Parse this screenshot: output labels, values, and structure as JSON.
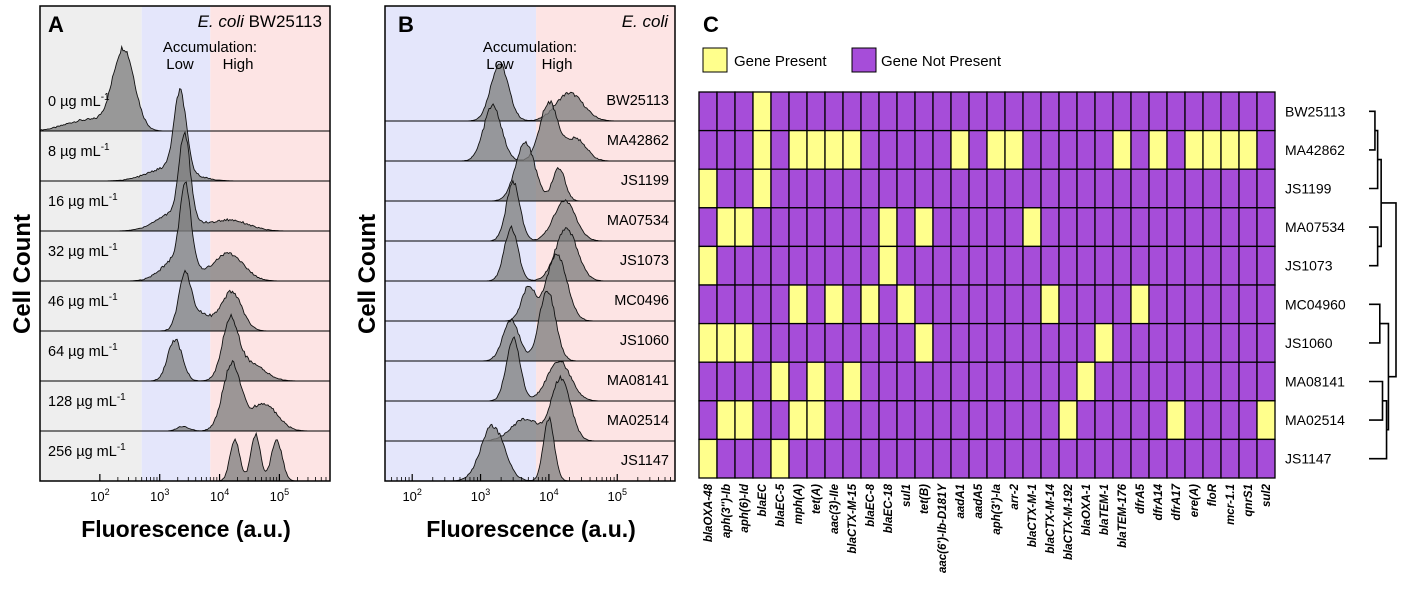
{
  "colors": {
    "low_band": "#e4e6fb",
    "high_band": "#fde4e4",
    "untreated_band": "#eeeeee",
    "peak_fill": "#808080",
    "gene_present": "#ffff8c",
    "gene_absent": "#a64dd9"
  },
  "chart_data": [
    {
      "panel": "A",
      "type": "area",
      "title_italic": "E. coli",
      "title_plain": " BW25113",
      "band_label_top": "Accumulation:",
      "band_labels": [
        "Low",
        "High"
      ],
      "xlabel": "Fluorescence (a.u.)",
      "ylabel": "Cell Count",
      "xscale": "log",
      "xlim": [
        10,
        700000
      ],
      "band_edges": [
        500,
        7000
      ],
      "xticks": [
        100,
        1000,
        10000,
        100000
      ],
      "xtick_labels": [
        {
          "base": "10",
          "exp": "2"
        },
        {
          "base": "10",
          "exp": "3"
        },
        {
          "base": "10",
          "exp": "4"
        },
        {
          "base": "10",
          "exp": "5"
        }
      ],
      "rows": [
        {
          "label": "0 µg mL",
          "sup": "-1",
          "peaks": [
            {
              "c": 250,
              "h": 0.88,
              "w": 0.18
            },
            {
              "c": 60,
              "h": 0.12,
              "w": 0.35
            }
          ]
        },
        {
          "label": "8 µg mL",
          "sup": "-1",
          "peaks": [
            {
              "c": 2200,
              "h": 0.85,
              "w": 0.1
            },
            {
              "c": 1500,
              "h": 0.15,
              "w": 0.35
            }
          ]
        },
        {
          "label": "16 µg mL",
          "sup": "-1",
          "peaks": [
            {
              "c": 2600,
              "h": 0.9,
              "w": 0.09
            },
            {
              "c": 1800,
              "h": 0.2,
              "w": 0.3
            },
            {
              "c": 15000,
              "h": 0.12,
              "w": 0.3
            }
          ]
        },
        {
          "label": "32 µg mL",
          "sup": "-1",
          "peaks": [
            {
              "c": 2700,
              "h": 0.85,
              "w": 0.09
            },
            {
              "c": 2000,
              "h": 0.25,
              "w": 0.25
            },
            {
              "c": 14000,
              "h": 0.3,
              "w": 0.25
            }
          ]
        },
        {
          "label": "46 µg mL",
          "sup": "-1",
          "peaks": [
            {
              "c": 2600,
              "h": 0.55,
              "w": 0.1
            },
            {
              "c": 16000,
              "h": 0.42,
              "w": 0.17
            },
            {
              "c": 4500,
              "h": 0.2,
              "w": 0.2
            }
          ]
        },
        {
          "label": "64 µg mL",
          "sup": "-1",
          "peaks": [
            {
              "c": 1800,
              "h": 0.45,
              "w": 0.12
            },
            {
              "c": 15000,
              "h": 0.6,
              "w": 0.13
            },
            {
              "c": 30000,
              "h": 0.2,
              "w": 0.25
            }
          ]
        },
        {
          "label": "128 µg mL",
          "sup": "-1",
          "peaks": [
            {
              "c": 16000,
              "h": 0.72,
              "w": 0.15
            },
            {
              "c": 55000,
              "h": 0.3,
              "w": 0.22
            },
            {
              "c": 2500,
              "h": 0.05,
              "w": 0.1
            }
          ]
        },
        {
          "label": "256 µg mL",
          "sup": "-1",
          "peaks": [
            {
              "c": 18000,
              "h": 0.45,
              "w": 0.08
            },
            {
              "c": 40000,
              "h": 0.5,
              "w": 0.08
            },
            {
              "c": 90000,
              "h": 0.45,
              "w": 0.09
            }
          ]
        }
      ]
    },
    {
      "panel": "B",
      "type": "area",
      "title_italic": "E. coli",
      "title_plain": "",
      "band_label_top": "Accumulation:",
      "band_labels": [
        "Low",
        "High"
      ],
      "xlabel": "Fluorescence (a.u.)",
      "ylabel": "Cell Count",
      "xscale": "log",
      "xlim": [
        40,
        700000
      ],
      "band_edges": [
        null,
        6500
      ],
      "xticks": [
        100,
        1000,
        10000,
        100000
      ],
      "xtick_labels": [
        {
          "base": "10",
          "exp": "2"
        },
        {
          "base": "10",
          "exp": "3"
        },
        {
          "base": "10",
          "exp": "4"
        },
        {
          "base": "10",
          "exp": "5"
        }
      ],
      "rows": [
        {
          "label": "BW25113",
          "peaks": [
            {
              "c": 1900,
              "h": 0.78,
              "w": 0.13
            },
            {
              "c": 20000,
              "h": 0.38,
              "w": 0.2
            }
          ]
        },
        {
          "label": "MA42862",
          "peaks": [
            {
              "c": 1500,
              "h": 0.75,
              "w": 0.13
            },
            {
              "c": 10000,
              "h": 0.8,
              "w": 0.13
            },
            {
              "c": 25000,
              "h": 0.3,
              "w": 0.15
            }
          ]
        },
        {
          "label": "JS1199",
          "peaks": [
            {
              "c": 4500,
              "h": 0.8,
              "w": 0.14
            },
            {
              "c": 14000,
              "h": 0.45,
              "w": 0.09
            }
          ]
        },
        {
          "label": "MA07534",
          "peaks": [
            {
              "c": 3000,
              "h": 0.8,
              "w": 0.1
            },
            {
              "c": 17000,
              "h": 0.55,
              "w": 0.16
            }
          ]
        },
        {
          "label": "JS1073",
          "peaks": [
            {
              "c": 2800,
              "h": 0.72,
              "w": 0.1
            },
            {
              "c": 18000,
              "h": 0.7,
              "w": 0.16
            }
          ]
        },
        {
          "label": "MC0496",
          "peaks": [
            {
              "c": 5000,
              "h": 0.45,
              "w": 0.1
            },
            {
              "c": 13000,
              "h": 0.9,
              "w": 0.15
            }
          ]
        },
        {
          "label": "JS1060",
          "peaks": [
            {
              "c": 2800,
              "h": 0.55,
              "w": 0.12
            },
            {
              "c": 9500,
              "h": 0.95,
              "w": 0.12
            }
          ]
        },
        {
          "label": "MA08141",
          "peaks": [
            {
              "c": 3000,
              "h": 0.85,
              "w": 0.1
            },
            {
              "c": 14000,
              "h": 0.55,
              "w": 0.17
            }
          ]
        },
        {
          "label": "MA02514",
          "peaks": [
            {
              "c": 4500,
              "h": 0.3,
              "w": 0.2
            },
            {
              "c": 15000,
              "h": 0.85,
              "w": 0.14
            }
          ]
        },
        {
          "label": "JS1147",
          "peaks": [
            {
              "c": 1500,
              "h": 0.75,
              "w": 0.17
            },
            {
              "c": 10000,
              "h": 0.85,
              "w": 0.08
            }
          ]
        }
      ]
    },
    {
      "panel": "C",
      "type": "heatmap",
      "legend": [
        "Gene Present",
        "Gene Not Present"
      ],
      "columns": [
        "blaOXA-48",
        "aph(3'')-Ib",
        "aph(6)-Id",
        "blaEC",
        "blaEC-5",
        "mph(A)",
        "tet(A)",
        "aac(3)-IIe",
        "blaCTX-M-15",
        "blaEC-8",
        "blaEC-18",
        "sul1",
        "tet(B)",
        "aac(6')-Ib-D181Y",
        "aadA1",
        "aadA5",
        "aph(3')-Ia",
        "arr-2",
        "blaCTX-M-1",
        "blaCTX-M-14",
        "blaCTX-M-192",
        "blaOXA-1",
        "blaTEM-1",
        "blaTEM-176",
        "dfrA5",
        "dfrA14",
        "dfrA17",
        "ere(A)",
        "floR",
        "mcr-1.1",
        "qnrS1",
        "sul2"
      ],
      "rows": [
        "BW25113",
        "MA42862",
        "JS1199",
        "MA07534",
        "JS1073",
        "MC04960",
        "JS1060",
        "MA08141",
        "MA02514",
        "JS1147"
      ],
      "present": [
        [
          3
        ],
        [
          3,
          5,
          6,
          7,
          8,
          14,
          16,
          17,
          23,
          25,
          27,
          28,
          29,
          30
        ],
        [
          0,
          3
        ],
        [
          1,
          2,
          10,
          12,
          18
        ],
        [
          0,
          10
        ],
        [
          5,
          7,
          9,
          11,
          19,
          24
        ],
        [
          0,
          1,
          2,
          12,
          22
        ],
        [
          4,
          6,
          8,
          21
        ],
        [
          1,
          2,
          5,
          6,
          20,
          26,
          31
        ],
        [
          0,
          4
        ]
      ],
      "dendrogram": {
        "leaf_order": [
          "BW25113",
          "MA42862",
          "JS1199",
          "MA07534",
          "JS1073",
          "MC04960",
          "JS1060",
          "MA08141",
          "MA02514",
          "JS1147"
        ],
        "merges": [
          {
            "a": 0,
            "b": 1,
            "h": 0.22
          },
          {
            "a": "m0",
            "b": 2,
            "h": 0.32
          },
          {
            "a": 3,
            "b": 4,
            "h": 0.32
          },
          {
            "a": "m1",
            "b": "m2",
            "h": 0.45
          },
          {
            "a": 5,
            "b": 6,
            "h": 0.4
          },
          {
            "a": 7,
            "b": 8,
            "h": 0.5
          },
          {
            "a": "m5",
            "b": 9,
            "h": 0.65
          },
          {
            "a": "m4",
            "b": "m6",
            "h": 0.72
          },
          {
            "a": "m3",
            "b": "m7",
            "h": 1.0
          }
        ]
      }
    }
  ]
}
